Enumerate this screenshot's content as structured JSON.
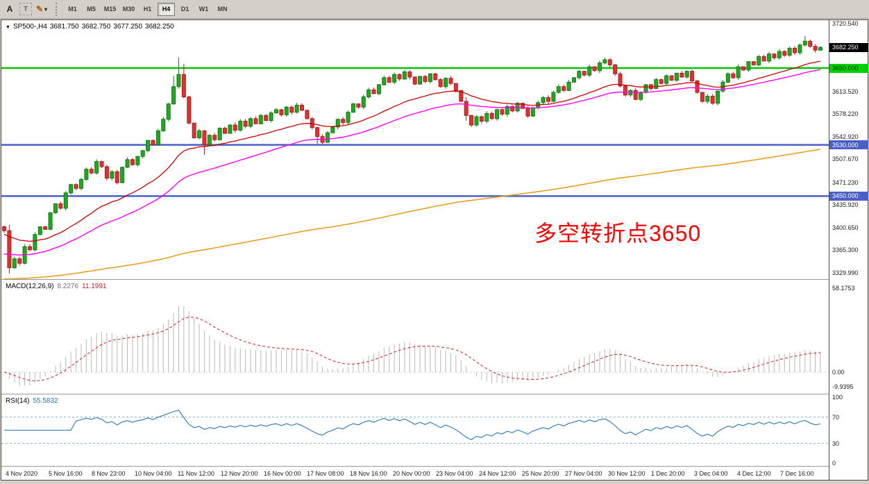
{
  "toolbar": {
    "tools": {
      "cursor": "A",
      "text": "T",
      "draw": "✎",
      "draw_caret": "▾"
    },
    "timeframes": [
      "M1",
      "M5",
      "M15",
      "M30",
      "H1",
      "H4",
      "D1",
      "W1",
      "MN"
    ],
    "active_timeframe": "H4"
  },
  "chart": {
    "title": {
      "symbol_period": "SP500-,H4",
      "open": "3681.750",
      "high": "3682.750",
      "low": "3677.250",
      "close": "3682.250"
    },
    "collapse_triangle": "▼",
    "annotation": {
      "text": "多空转折点3650",
      "color": "#FF0000"
    },
    "price_scale": {
      "ticks": [
        "3720.540",
        "3613.520",
        "3578.220",
        "3542.920",
        "3507.670",
        "3471.230",
        "3435.920",
        "3400.650",
        "3365.300",
        "3329.990"
      ],
      "current_price_badge": {
        "value": "3682.250",
        "bg": "#000000",
        "fg": "#ffffff"
      },
      "level_badges": [
        {
          "value": "3650.000",
          "price": 3650.0,
          "bg": "#00d200",
          "fg": "#003300"
        },
        {
          "value": "3530.000",
          "price": 3530.0,
          "bg": "#4a5fc8",
          "fg": "#ffffff"
        },
        {
          "value": "3450.000",
          "price": 3450.0,
          "bg": "#4a5fc8",
          "fg": "#ffffff"
        }
      ]
    },
    "hlines": [
      {
        "price": 3650.0,
        "color": "#00c800",
        "width": 2.5
      },
      {
        "price": 3530.0,
        "color": "#4a5fc8",
        "width": 2.5
      },
      {
        "price": 3450.0,
        "color": "#4a5fc8",
        "width": 2.5
      }
    ]
  },
  "macd_panel": {
    "label": "MACD(12,26,9)",
    "value_main": "8.2276",
    "value_signal": "11.1991",
    "scale_top": "58.1753",
    "scale_zero": "0.00",
    "scale_bottom": "-9.9395"
  },
  "rsi_panel": {
    "label": "RSI(14)",
    "value": "55.5832",
    "scale": [
      "100",
      "70",
      "30",
      "0"
    ],
    "levels": [
      70,
      30
    ]
  },
  "x_axis": {
    "labels": [
      "4 Nov 2020",
      "5 Nov 16:00",
      "8 Nov 23:00",
      "10 Nov 04:00",
      "11 Nov 12:00",
      "12 Nov 20:00",
      "16 Nov 00:00",
      "17 Nov 08:00",
      "18 Nov 16:00",
      "20 Nov 00:00",
      "23 Nov 04:00",
      "24 Nov 12:00",
      "25 Nov 20:00",
      "27 Nov 04:00",
      "30 Nov 12:00",
      "1 Dec 20:00",
      "3 Dec 04:00",
      "4 Dec 12:00",
      "7 Dec 16:00"
    ]
  },
  "chart_data": {
    "type": "candlestick",
    "symbol": "SP500-",
    "timeframe": "H4",
    "price_range": [
      3329.99,
      3720.54
    ],
    "first_open": 3402,
    "closes": [
      3396,
      3338,
      3352,
      3345,
      3371,
      3366,
      3390,
      3402,
      3398,
      3424,
      3438,
      3431,
      3455,
      3468,
      3462,
      3476,
      3492,
      3486,
      3504,
      3496,
      3478,
      3488,
      3471,
      3495,
      3507,
      3499,
      3512,
      3521,
      3537,
      3530,
      3552,
      3570,
      3594,
      3621,
      3640,
      3605,
      3564,
      3541,
      3552,
      3530,
      3545,
      3538,
      3556,
      3548,
      3561,
      3553,
      3567,
      3559,
      3571,
      3563,
      3576,
      3568,
      3580,
      3585,
      3577,
      3589,
      3581,
      3592,
      3584,
      3571,
      3557,
      3543,
      3534,
      3549,
      3558,
      3570,
      3565,
      3581,
      3594,
      3589,
      3605,
      3616,
      3610,
      3624,
      3635,
      3628,
      3640,
      3633,
      3644,
      3636,
      3625,
      3637,
      3629,
      3641,
      3632,
      3621,
      3634,
      3626,
      3615,
      3598,
      3576,
      3561,
      3574,
      3567,
      3579,
      3571,
      3585,
      3578,
      3590,
      3583,
      3595,
      3587,
      3575,
      3588,
      3596,
      3604,
      3598,
      3612,
      3621,
      3615,
      3628,
      3635,
      3645,
      3639,
      3652,
      3646,
      3658,
      3663,
      3655,
      3641,
      3622,
      3608,
      3615,
      3601,
      3612,
      3624,
      3618,
      3632,
      3626,
      3638,
      3631,
      3642,
      3636,
      3645,
      3630,
      3612,
      3598,
      3606,
      3595,
      3614,
      3628,
      3641,
      3635,
      3652,
      3647,
      3660,
      3655,
      3668,
      3661,
      3672,
      3666,
      3676,
      3670,
      3681,
      3674,
      3686,
      3692,
      3684,
      3678,
      3682.25
    ],
    "wick_overrides_high": {
      "1": 5,
      "33": 16,
      "34": 26,
      "35": 14,
      "90": 6,
      "156": 6
    },
    "wick_overrides_low": {
      "1": 7,
      "39": 13,
      "61": 8,
      "90": 5
    },
    "candle_colors": {
      "up": "#22a822",
      "up_stroke": "#157815",
      "down": "#e03232",
      "down_stroke": "#aa1e1e"
    },
    "indicators": {
      "ma_fast": {
        "period": 26,
        "init": 3390,
        "color": "#cc0000"
      },
      "ma_mid": {
        "period": 45,
        "init": 3358,
        "color": "#ff00ff"
      },
      "ma_slow": {
        "period": 250,
        "init": 3320,
        "color": "#e8a020"
      },
      "macd": {
        "fast": 12,
        "slow": 26,
        "signal": 9,
        "hist_color": "#b8b8b8",
        "signal_color": "#cc3333"
      },
      "rsi": {
        "period": 14,
        "color": "#2878b4"
      }
    },
    "horizontal_levels": [
      3650,
      3530,
      3450
    ],
    "last_values": {
      "open": 3681.75,
      "high": 3682.75,
      "low": 3677.25,
      "close": 3682.25,
      "macd": 8.2276,
      "macd_signal": 11.1991,
      "rsi": 55.5832
    }
  }
}
